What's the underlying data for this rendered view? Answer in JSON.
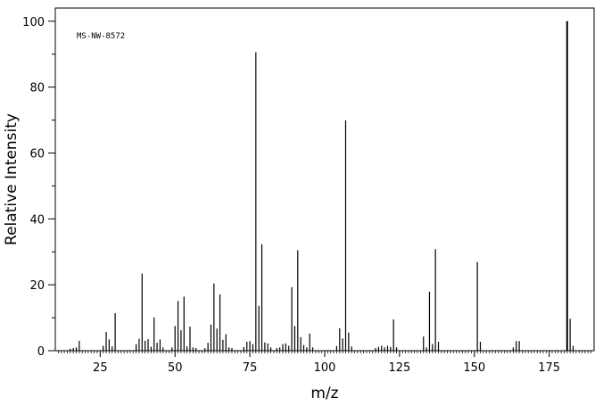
{
  "chart_data": {
    "type": "bar",
    "subtype": "mass-spectrum stick plot",
    "title": "",
    "annotation": "MS-NW-8572",
    "xlabel": "m/z",
    "ylabel": "Relative Intensity",
    "xlim": [
      10,
      190
    ],
    "ylim": [
      0,
      104
    ],
    "xticks": [
      25,
      50,
      75,
      100,
      125,
      150,
      175
    ],
    "yticks": [
      0,
      20,
      40,
      60,
      80,
      100
    ],
    "grid": false,
    "peaks": [
      {
        "mz": 15,
        "intensity": 0.6
      },
      {
        "mz": 16,
        "intensity": 0.8
      },
      {
        "mz": 17,
        "intensity": 1.0
      },
      {
        "mz": 18,
        "intensity": 3.0
      },
      {
        "mz": 26,
        "intensity": 1.5
      },
      {
        "mz": 27,
        "intensity": 5.7
      },
      {
        "mz": 28,
        "intensity": 3.4
      },
      {
        "mz": 29,
        "intensity": 1.3
      },
      {
        "mz": 30,
        "intensity": 11.4
      },
      {
        "mz": 37,
        "intensity": 2.0
      },
      {
        "mz": 38,
        "intensity": 3.6
      },
      {
        "mz": 39,
        "intensity": 23.4
      },
      {
        "mz": 40,
        "intensity": 3.0
      },
      {
        "mz": 41,
        "intensity": 3.5
      },
      {
        "mz": 42,
        "intensity": 1.2
      },
      {
        "mz": 43,
        "intensity": 10.1
      },
      {
        "mz": 44,
        "intensity": 2.4
      },
      {
        "mz": 45,
        "intensity": 3.4
      },
      {
        "mz": 46,
        "intensity": 1.0
      },
      {
        "mz": 49,
        "intensity": 1.0
      },
      {
        "mz": 50,
        "intensity": 7.5
      },
      {
        "mz": 51,
        "intensity": 15.1
      },
      {
        "mz": 52,
        "intensity": 6.2
      },
      {
        "mz": 53,
        "intensity": 16.4
      },
      {
        "mz": 54,
        "intensity": 1.3
      },
      {
        "mz": 55,
        "intensity": 7.3
      },
      {
        "mz": 56,
        "intensity": 1.0
      },
      {
        "mz": 57,
        "intensity": 0.8
      },
      {
        "mz": 60,
        "intensity": 0.8
      },
      {
        "mz": 61,
        "intensity": 2.4
      },
      {
        "mz": 62,
        "intensity": 7.9
      },
      {
        "mz": 63,
        "intensity": 20.4
      },
      {
        "mz": 64,
        "intensity": 6.7
      },
      {
        "mz": 65,
        "intensity": 17.1
      },
      {
        "mz": 66,
        "intensity": 3.3
      },
      {
        "mz": 67,
        "intensity": 5.0
      },
      {
        "mz": 68,
        "intensity": 1.0
      },
      {
        "mz": 69,
        "intensity": 0.8
      },
      {
        "mz": 73,
        "intensity": 1.1
      },
      {
        "mz": 74,
        "intensity": 2.7
      },
      {
        "mz": 75,
        "intensity": 2.9
      },
      {
        "mz": 76,
        "intensity": 2.0
      },
      {
        "mz": 77,
        "intensity": 90.6
      },
      {
        "mz": 78,
        "intensity": 13.6
      },
      {
        "mz": 79,
        "intensity": 32.3
      },
      {
        "mz": 80,
        "intensity": 2.5
      },
      {
        "mz": 81,
        "intensity": 2.2
      },
      {
        "mz": 82,
        "intensity": 1.0
      },
      {
        "mz": 84,
        "intensity": 0.8
      },
      {
        "mz": 85,
        "intensity": 1.0
      },
      {
        "mz": 86,
        "intensity": 2.0
      },
      {
        "mz": 87,
        "intensity": 2.2
      },
      {
        "mz": 88,
        "intensity": 1.5
      },
      {
        "mz": 89,
        "intensity": 19.3
      },
      {
        "mz": 90,
        "intensity": 7.5
      },
      {
        "mz": 91,
        "intensity": 30.5
      },
      {
        "mz": 92,
        "intensity": 4.1
      },
      {
        "mz": 93,
        "intensity": 1.7
      },
      {
        "mz": 94,
        "intensity": 1.0
      },
      {
        "mz": 95,
        "intensity": 5.2
      },
      {
        "mz": 96,
        "intensity": 1.0
      },
      {
        "mz": 104,
        "intensity": 1.4
      },
      {
        "mz": 105,
        "intensity": 6.8
      },
      {
        "mz": 106,
        "intensity": 3.7
      },
      {
        "mz": 107,
        "intensity": 69.9
      },
      {
        "mz": 108,
        "intensity": 5.5
      },
      {
        "mz": 109,
        "intensity": 1.3
      },
      {
        "mz": 117,
        "intensity": 0.8
      },
      {
        "mz": 118,
        "intensity": 1.2
      },
      {
        "mz": 119,
        "intensity": 1.5
      },
      {
        "mz": 120,
        "intensity": 1.0
      },
      {
        "mz": 121,
        "intensity": 1.5
      },
      {
        "mz": 122,
        "intensity": 1.1
      },
      {
        "mz": 123,
        "intensity": 9.5
      },
      {
        "mz": 124,
        "intensity": 1.0
      },
      {
        "mz": 133,
        "intensity": 4.3
      },
      {
        "mz": 134,
        "intensity": 1.0
      },
      {
        "mz": 135,
        "intensity": 17.9
      },
      {
        "mz": 136,
        "intensity": 2.0
      },
      {
        "mz": 137,
        "intensity": 30.8
      },
      {
        "mz": 138,
        "intensity": 2.7
      },
      {
        "mz": 151,
        "intensity": 26.9
      },
      {
        "mz": 152,
        "intensity": 2.7
      },
      {
        "mz": 163,
        "intensity": 1.0
      },
      {
        "mz": 164,
        "intensity": 2.9
      },
      {
        "mz": 165,
        "intensity": 2.9
      },
      {
        "mz": 181,
        "intensity": 100
      },
      {
        "mz": 182,
        "intensity": 9.7
      },
      {
        "mz": 183,
        "intensity": 1.5
      }
    ]
  }
}
